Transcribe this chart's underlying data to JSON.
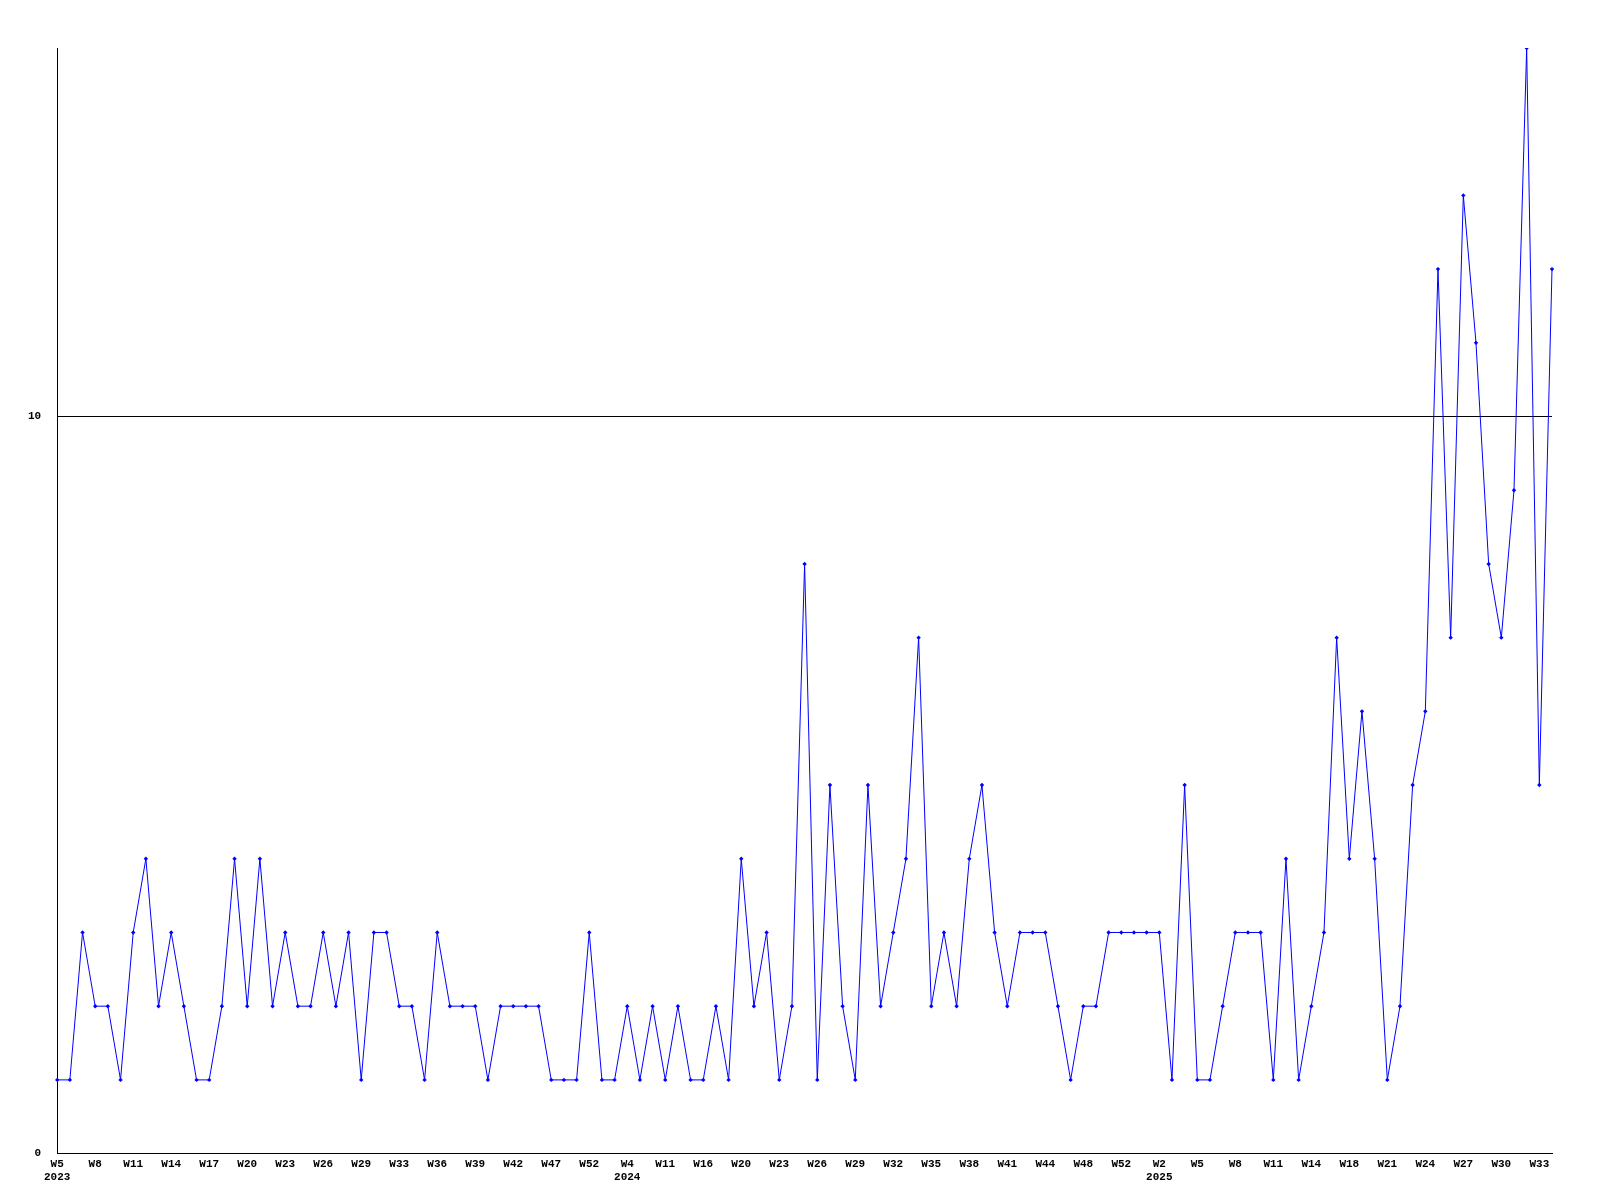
{
  "chart_data": {
    "type": "line",
    "categories": [
      "W5\n2023",
      null,
      null,
      "W8",
      null,
      null,
      "W11",
      null,
      null,
      "W14",
      null,
      null,
      "W17",
      null,
      null,
      "W20",
      null,
      null,
      "W23",
      null,
      null,
      "W26",
      null,
      null,
      "W29",
      null,
      null,
      "W33",
      null,
      null,
      "W36",
      null,
      null,
      "W39",
      null,
      null,
      "W42",
      null,
      null,
      "W47",
      null,
      null,
      "W52",
      null,
      null,
      "W4\n2024",
      null,
      null,
      "W11",
      null,
      null,
      "W16",
      null,
      null,
      "W20",
      null,
      null,
      "W23",
      null,
      null,
      "W26",
      null,
      null,
      "W29",
      null,
      null,
      "W32",
      null,
      null,
      "W35",
      null,
      null,
      "W38",
      null,
      null,
      "W41",
      null,
      null,
      "W44",
      null,
      null,
      "W48",
      null,
      null,
      "W52",
      null,
      null,
      "W2\n2025",
      null,
      null,
      "W5",
      null,
      null,
      "W8",
      null,
      null,
      "W11",
      null,
      null,
      "W14",
      null,
      null,
      "W18",
      null,
      null,
      "W21",
      null,
      null,
      "W24",
      null,
      null,
      "W27",
      null,
      null,
      "W30",
      null,
      null,
      "W33",
      null
    ],
    "series": [
      {
        "color": "#0000ff",
        "values": [
          1,
          1,
          3,
          2,
          2,
          1,
          3,
          4,
          2,
          3,
          2,
          1,
          1,
          2,
          4,
          2,
          4,
          2,
          3,
          2,
          2,
          3,
          2,
          3,
          1,
          3,
          3,
          2,
          2,
          1,
          3,
          2,
          2,
          2,
          1,
          2,
          2,
          2,
          2,
          1,
          1,
          1,
          3,
          1,
          1,
          2,
          1,
          2,
          1,
          2,
          1,
          1,
          2,
          1,
          4,
          2,
          3,
          1,
          2,
          8,
          1,
          5,
          2,
          1,
          5,
          2,
          3,
          4,
          7,
          2,
          3,
          2,
          4,
          5,
          3,
          2,
          3,
          3,
          3,
          2,
          1,
          2,
          2,
          3,
          3,
          3,
          3,
          3,
          1,
          5,
          1,
          1,
          2,
          3,
          3,
          3,
          1,
          4,
          1,
          2,
          3,
          7,
          4,
          6,
          4,
          1,
          2,
          5,
          6,
          12,
          7,
          13,
          11,
          8,
          7,
          9,
          15,
          5,
          12
        ]
      }
    ],
    "ylim": [
      0,
      15
    ],
    "yticks": [
      0,
      10
    ],
    "grid": "y",
    "marker": "diamond",
    "line_style": "solid",
    "legend": false
  }
}
